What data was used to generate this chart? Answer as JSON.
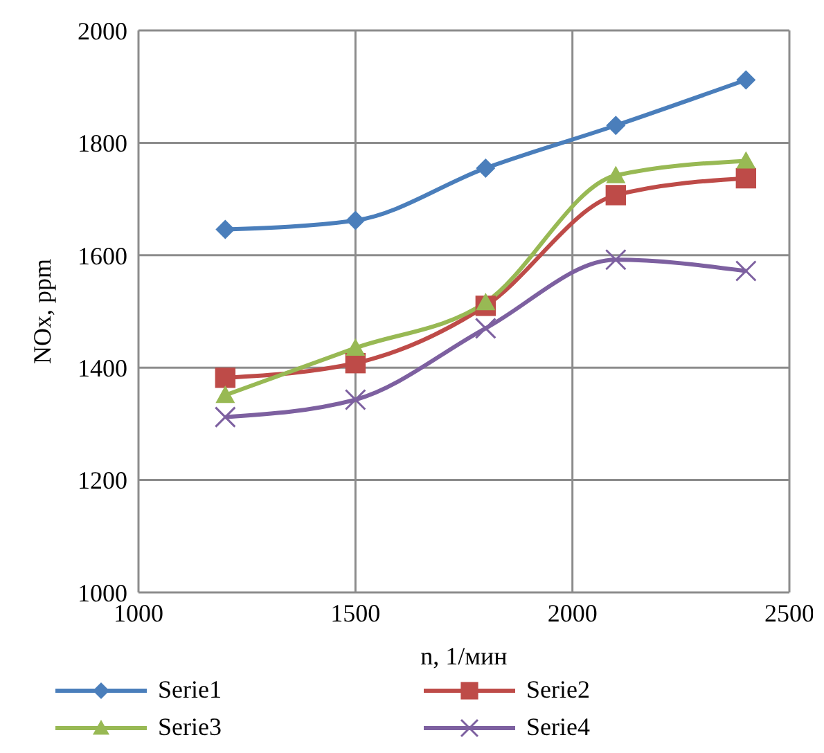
{
  "chart_data": {
    "type": "line",
    "xlabel": "n, 1/мин",
    "ylabel": "NOx, ppm",
    "x": [
      1200,
      1500,
      1800,
      2100,
      2400
    ],
    "series": [
      {
        "name": "Serie1",
        "color": "#4a7ebb",
        "marker": "diamond",
        "values": [
          1646,
          1662,
          1755,
          1831,
          1912
        ]
      },
      {
        "name": "Serie2",
        "color": "#be4b48",
        "marker": "square",
        "values": [
          1382,
          1408,
          1510,
          1707,
          1737
        ]
      },
      {
        "name": "Serie3",
        "color": "#98b954",
        "marker": "triangle",
        "values": [
          1351,
          1435,
          1516,
          1742,
          1768
        ]
      },
      {
        "name": "Serie4",
        "color": "#7d60a0",
        "marker": "cross",
        "values": [
          1312,
          1343,
          1470,
          1592,
          1572
        ]
      }
    ],
    "xlim": [
      1000,
      2500
    ],
    "xticks": [
      1000,
      1500,
      2000,
      2500
    ],
    "ylim": [
      1000,
      2000
    ],
    "yticks": [
      1000,
      1200,
      1400,
      1600,
      1800,
      2000
    ],
    "grid": true,
    "legend": "bottom",
    "line_style": "solid"
  }
}
